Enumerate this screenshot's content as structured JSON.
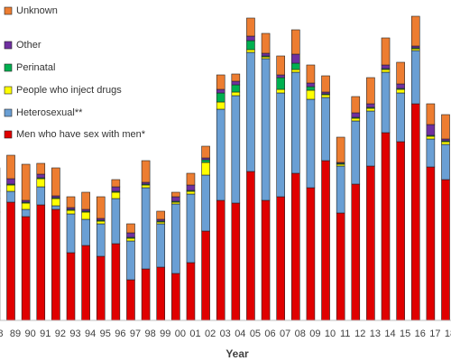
{
  "chart_data": {
    "type": "stacked_bar",
    "x_label": "Year",
    "categories": [
      "8",
      "89",
      "90",
      "91",
      "92",
      "93",
      "94",
      "95",
      "96",
      "97",
      "98",
      "99",
      "00",
      "01",
      "02",
      "03",
      "04",
      "05",
      "06",
      "07",
      "08",
      "09",
      "10",
      "11",
      "12",
      "13",
      "14",
      "15",
      "16",
      "17",
      "18"
    ],
    "ylim": [
      0,
      345
    ],
    "series": [
      {
        "name": "Men who have sex with men*",
        "color": "#e00000",
        "values": [
          120,
          131,
          115,
          128,
          123,
          75,
          83,
          71,
          85,
          45,
          57,
          59,
          52,
          64,
          99,
          133,
          130,
          165,
          133,
          137,
          163,
          147,
          177,
          119,
          151,
          171,
          208,
          198,
          240,
          170,
          156
        ]
      },
      {
        "name": "Heterosexual**",
        "color": "#6a9fd4",
        "values": [
          15,
          12,
          8,
          20,
          4,
          43,
          29,
          36,
          50,
          43,
          90,
          48,
          77,
          76,
          62,
          101,
          119,
          132,
          157,
          115,
          112,
          98,
          70,
          52,
          70,
          61,
          67,
          54,
          59,
          31,
          39
        ]
      },
      {
        "name": "People who inject drugs",
        "color": "#ffff00",
        "values": [
          8,
          7,
          7,
          9,
          8,
          4,
          8,
          3,
          7,
          3,
          3,
          2,
          2,
          3,
          14,
          8,
          4,
          3,
          2,
          4,
          3,
          10,
          3,
          2,
          3,
          3,
          3,
          4,
          2,
          3,
          3
        ]
      },
      {
        "name": "Perinatal",
        "color": "#00b050",
        "values": [
          1,
          1,
          1,
          1,
          1,
          1,
          1,
          1,
          1,
          1,
          1,
          1,
          1,
          1,
          3,
          10,
          8,
          10,
          1,
          13,
          7,
          4,
          1,
          1,
          1,
          1,
          1,
          1,
          1,
          1,
          1
        ]
      },
      {
        "name": "Other",
        "color": "#7030a0",
        "values": [
          5,
          6,
          2,
          4,
          2,
          2,
          2,
          2,
          5,
          5,
          2,
          2,
          5,
          6,
          2,
          4,
          4,
          5,
          3,
          3,
          10,
          4,
          2,
          1,
          5,
          4,
          4,
          5,
          2,
          12,
          2
        ]
      },
      {
        "name": "Unknown",
        "color": "#ed7d31",
        "values": [
          20,
          26,
          40,
          12,
          31,
          12,
          19,
          24,
          8,
          10,
          24,
          9,
          5,
          13,
          13,
          16,
          8,
          20,
          22,
          21,
          27,
          20,
          18,
          28,
          18,
          29,
          30,
          24,
          33,
          23,
          27
        ]
      }
    ]
  }
}
